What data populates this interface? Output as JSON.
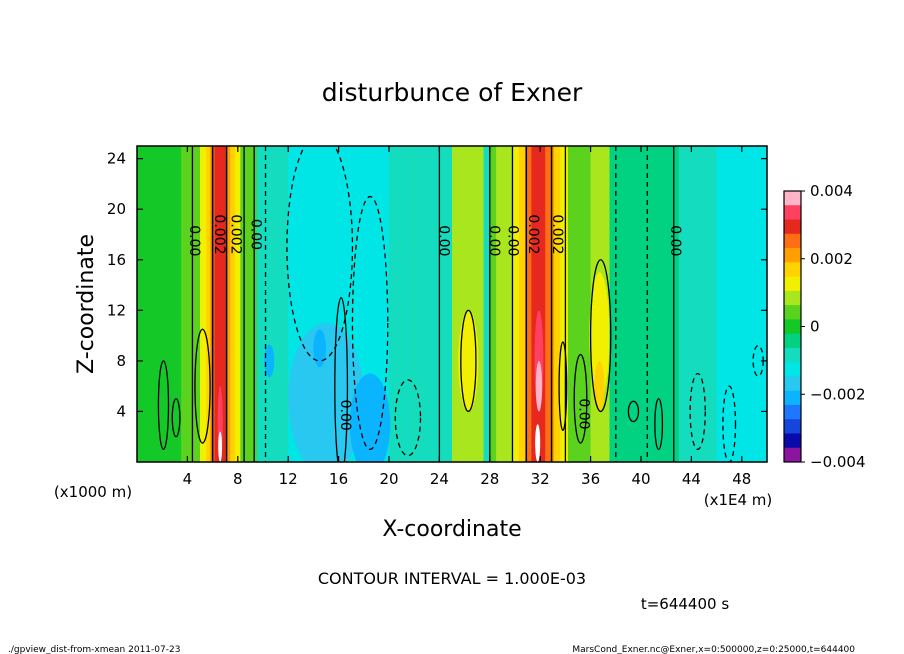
{
  "chart_data": {
    "type": "heatmap",
    "title": "disturbunce of Exner",
    "xlabel": "X-coordinate",
    "ylabel": "Z-coordinate",
    "x_unit_left": "(x1000 m)",
    "x_unit_right": "(x1E4 m)",
    "xlim": [
      0,
      50
    ],
    "ylim": [
      0,
      25
    ],
    "x_ticks": [
      "4",
      "8",
      "12",
      "16",
      "20",
      "24",
      "28",
      "32",
      "36",
      "40",
      "44",
      "48"
    ],
    "y_ticks": [
      "4",
      "8",
      "12",
      "16",
      "20",
      "24"
    ],
    "colorbar": {
      "range": [
        -0.004,
        0.004
      ],
      "tick_labels": [
        "0.004",
        "0.002",
        "0",
        "−0.002",
        "−0.004"
      ],
      "colors": [
        "#ffb4c8",
        "#ff4060",
        "#e6281e",
        "#ff6e14",
        "#ffa000",
        "#ffd200",
        "#f0f000",
        "#aae61e",
        "#5ad21e",
        "#14c828",
        "#00d282",
        "#14dcbe",
        "#00e6e6",
        "#28c8f0",
        "#0ab4ff",
        "#1e78ff",
        "#1446dc",
        "#0a0aaa",
        "#8c14a0"
      ]
    },
    "contour_labels": [
      {
        "text": "0.00",
        "x": 4.2,
        "y": 17.5
      },
      {
        "text": "0.002",
        "x": 6.2,
        "y": 18
      },
      {
        "text": "0.002",
        "x": 7.5,
        "y": 18
      },
      {
        "text": "0.00",
        "x": 9.1,
        "y": 18
      },
      {
        "text": "0.00",
        "x": 16.2,
        "y": 3.7
      },
      {
        "text": "0.00",
        "x": 24.0,
        "y": 17.5
      },
      {
        "text": "0.00",
        "x": 28.0,
        "y": 17.5
      },
      {
        "text": "0.00",
        "x": 29.5,
        "y": 17.5
      },
      {
        "text": "0.002",
        "x": 31.1,
        "y": 18
      },
      {
        "text": "0.002",
        "x": 33.0,
        "y": 18
      },
      {
        "text": "0.00",
        "x": 35.1,
        "y": 3.8
      },
      {
        "text": "0.00",
        "x": 42.4,
        "y": 17.5
      }
    ],
    "contour_interval_text": "CONTOUR INTERVAL = 1.000E-03",
    "time_text": "t=644400  s"
  },
  "footer": {
    "left": "./gpview_dist-from-xmean  2011-07-23",
    "right": "MarsCond_Exner.nc@Exner,x=0:500000,z=0:25000,t=644400"
  }
}
